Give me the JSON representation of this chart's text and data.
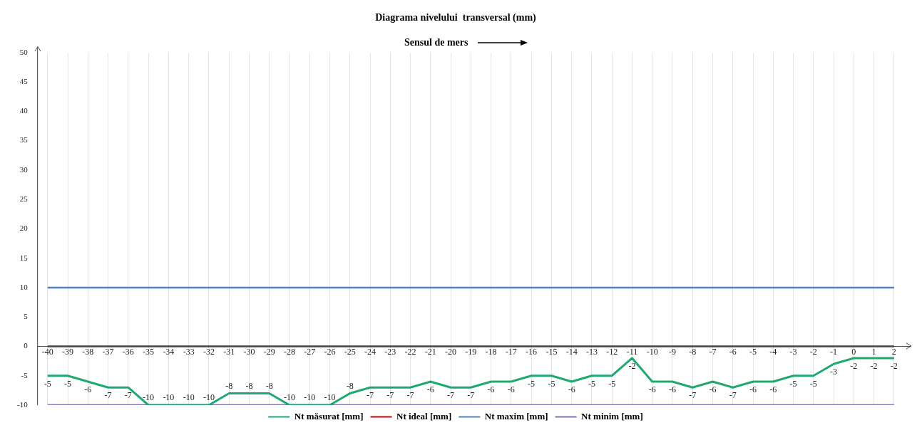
{
  "chart_data": {
    "type": "line",
    "title": "Diagrama nivelului  transversal (mm)",
    "annotations": [
      "Sensul de mers"
    ],
    "categories": [
      "-40",
      "-39",
      "-38",
      "-37",
      "-36",
      "-35",
      "-34",
      "-33",
      "-32",
      "-31",
      "-30",
      "-29",
      "-28",
      "-27",
      "-26",
      "-25",
      "-24",
      "-23",
      "-22",
      "-21",
      "-20",
      "-19",
      "-18",
      "-17",
      "-16",
      "-15",
      "-14",
      "-13",
      "-12",
      "-11",
      "-10",
      "-9",
      "-8",
      "-7",
      "-6",
      "-5",
      "-4",
      "-3",
      "-2",
      "-1",
      "0",
      "1",
      "2"
    ],
    "series": [
      {
        "name": "Nt măsurat [mm]",
        "color": "#1fa971",
        "values": [
          -5,
          -5,
          -6,
          -7,
          -7,
          -10,
          -10,
          -10,
          -10,
          -8,
          -8,
          -8,
          -10,
          -10,
          -10,
          -8,
          -7,
          -7,
          -7,
          -6,
          -7,
          -7,
          -6,
          -6,
          -5,
          -5,
          -6,
          -5,
          -5,
          -2,
          -6,
          -6,
          -7,
          -6,
          -7,
          -6,
          -6,
          -5,
          -5,
          -3,
          -2,
          -2,
          -2
        ],
        "value_labels": [
          "-5",
          "-5",
          "-6",
          "-7",
          "-7",
          "-10",
          "-10",
          "-10",
          "-10",
          "-8",
          "-8",
          "-8",
          "-10",
          "-10",
          "-10",
          "-8",
          "-7",
          "-7",
          "-7",
          "-6",
          "-7",
          "-7",
          "-6",
          "-6",
          "-5",
          "-5",
          "-6",
          "-5",
          "-5",
          "-2",
          "-6",
          "-6",
          "-7",
          "-6",
          "-7",
          "-6",
          "-6",
          "-5",
          "-5",
          "-3",
          "-2",
          "-2",
          "-2"
        ]
      },
      {
        "name": "Nt ideal [mm]",
        "color": "#cc0000",
        "values": [
          0,
          0,
          0,
          0,
          0,
          0,
          0,
          0,
          0,
          0,
          0,
          0,
          0,
          0,
          0,
          0,
          0,
          0,
          0,
          0,
          0,
          0,
          0,
          0,
          0,
          0,
          0,
          0,
          0,
          0,
          0,
          0,
          0,
          0,
          0,
          0,
          0,
          0,
          0,
          0,
          0,
          0,
          0
        ]
      },
      {
        "name": "Nt maxim [mm]",
        "color": "#4f81bd",
        "values": [
          10,
          10,
          10,
          10,
          10,
          10,
          10,
          10,
          10,
          10,
          10,
          10,
          10,
          10,
          10,
          10,
          10,
          10,
          10,
          10,
          10,
          10,
          10,
          10,
          10,
          10,
          10,
          10,
          10,
          10,
          10,
          10,
          10,
          10,
          10,
          10,
          10,
          10,
          10,
          10,
          10,
          10,
          10
        ]
      },
      {
        "name": "Nt minim [mm]",
        "color": "#7f74b8",
        "values": [
          -10,
          -10,
          -10,
          -10,
          -10,
          -10,
          -10,
          -10,
          -10,
          -10,
          -10,
          -10,
          -10,
          -10,
          -10,
          -10,
          -10,
          -10,
          -10,
          -10,
          -10,
          -10,
          -10,
          -10,
          -10,
          -10,
          -10,
          -10,
          -10,
          -10,
          -10,
          -10,
          -10,
          -10,
          -10,
          -10,
          -10,
          -10,
          -10,
          -10,
          -10,
          -10,
          -10
        ]
      }
    ],
    "ylim": [
      -10,
      50
    ],
    "yticks": [
      -10,
      -5,
      0,
      5,
      10,
      15,
      20,
      25,
      30,
      35,
      40,
      45,
      50
    ],
    "grid": "x",
    "legend": "bottom",
    "marker": "none",
    "line_style": "solid"
  }
}
